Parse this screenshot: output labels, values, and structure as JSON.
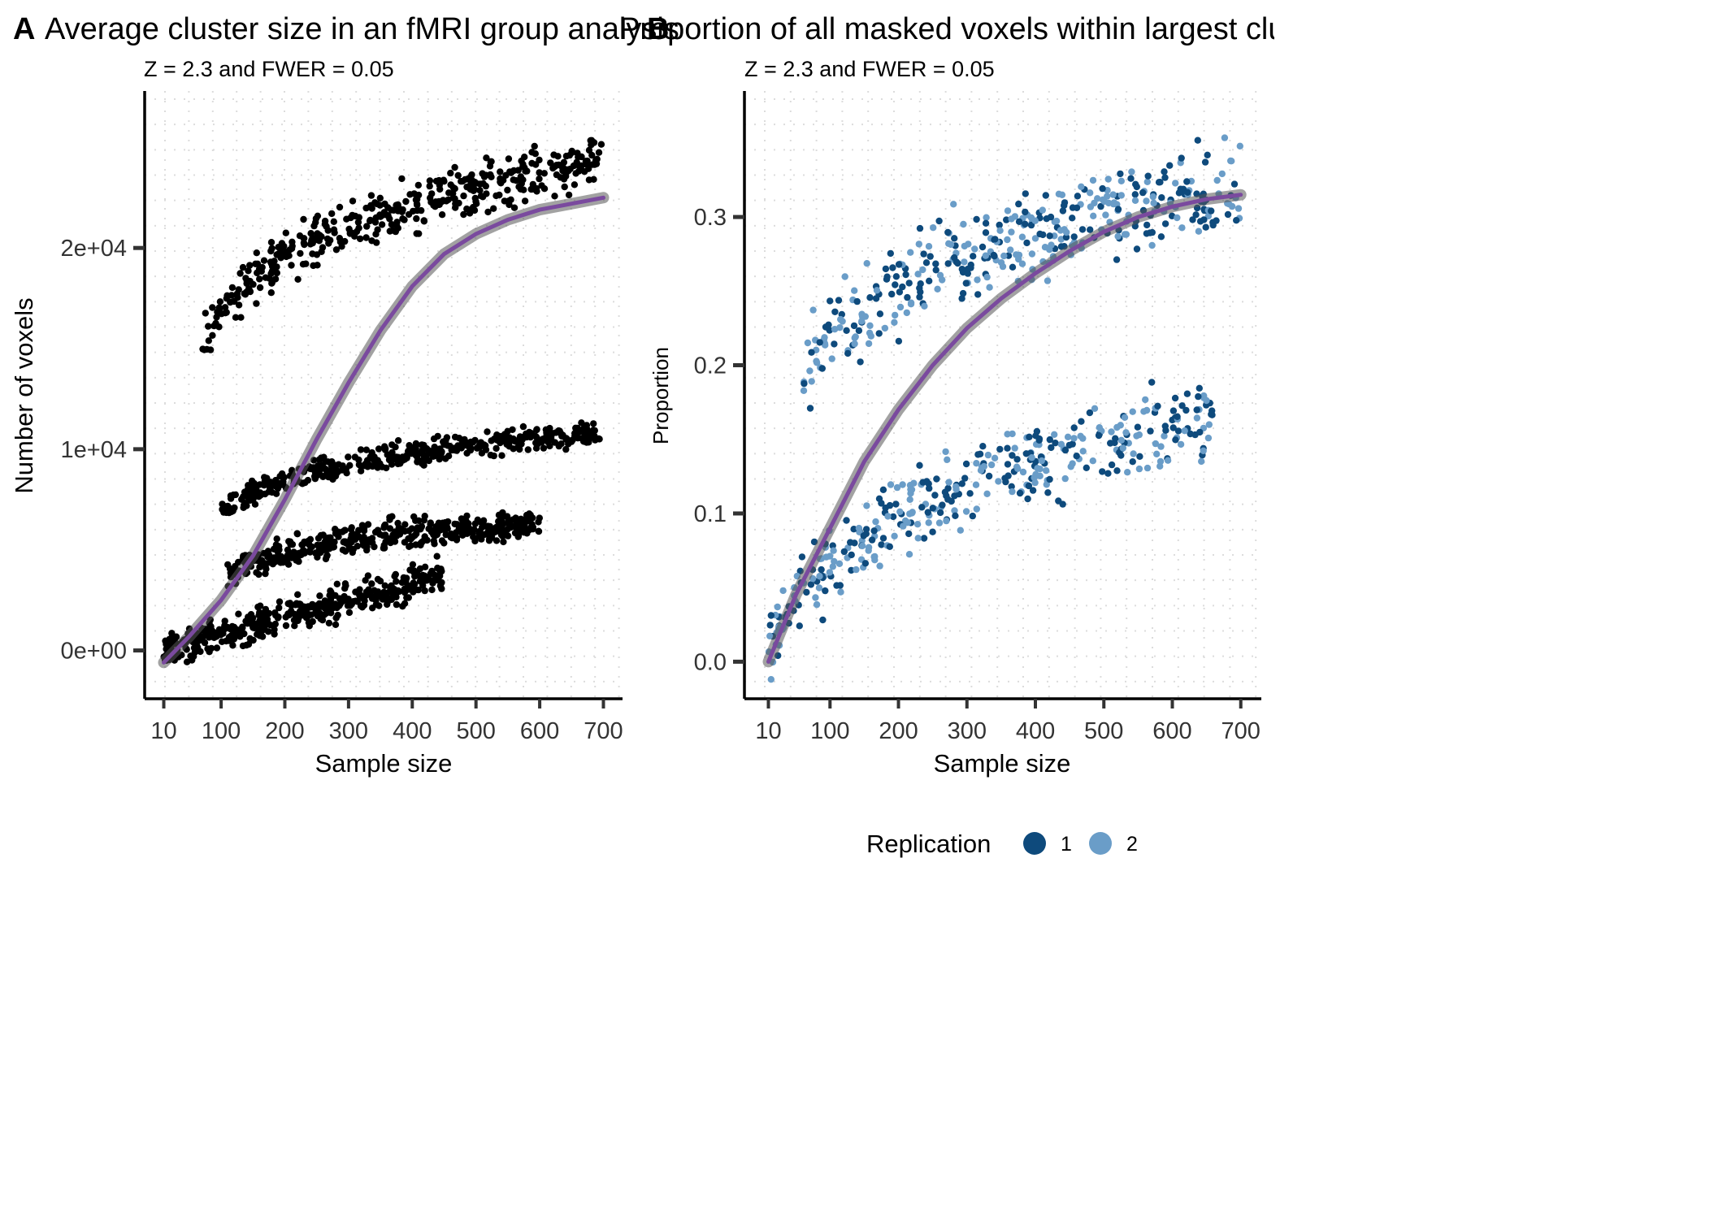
{
  "chart_data": [
    {
      "panel": "A",
      "type": "scatter",
      "title": "Average cluster size in an fMRI group analysis",
      "subtitle": "Z = 2.3 and FWER = 0.05",
      "xlabel": "Sample size",
      "ylabel": "Number of voxels",
      "x_ticks": [
        10,
        100,
        200,
        300,
        400,
        500,
        600,
        700
      ],
      "y_ticks": [
        0,
        10000,
        20000
      ],
      "y_tick_labels": [
        "0e+00",
        "1e+04",
        "2e+04"
      ],
      "xlim": [
        -20,
        730
      ],
      "ylim": [
        -2400,
        27800
      ],
      "grid": "dotted",
      "point_color": "#000000",
      "bands": [
        {
          "x": [
            70,
            700
          ],
          "y": [
            15500,
            24300
          ],
          "spread": 1800,
          "slope_shape": "log"
        },
        {
          "x": [
            100,
            700
          ],
          "y": [
            6800,
            10800
          ],
          "spread": 900,
          "slope_shape": "log"
        },
        {
          "x": [
            110,
            600
          ],
          "y": [
            3800,
            6300
          ],
          "spread": 1100,
          "slope_shape": "log"
        },
        {
          "x": [
            10,
            450
          ],
          "y": [
            0,
            3800
          ],
          "spread": 1200,
          "slope_shape": "linear"
        }
      ],
      "trend": {
        "color": "#7a4a9e",
        "x": [
          10,
          50,
          100,
          150,
          200,
          250,
          300,
          350,
          400,
          450,
          500,
          550,
          600,
          650,
          700
        ],
        "y": [
          -600,
          700,
          2500,
          4700,
          7500,
          10500,
          13300,
          15900,
          18100,
          19700,
          20700,
          21400,
          21900,
          22200,
          22500
        ]
      }
    },
    {
      "panel": "B",
      "type": "scatter",
      "title": "Proportion of all masked voxels within largest cluster",
      "subtitle": "Z = 2.3 and FWER = 0.05",
      "xlabel": "Sample size",
      "ylabel": "Proportion",
      "x_ticks": [
        10,
        100,
        200,
        300,
        400,
        500,
        600,
        700
      ],
      "y_ticks": [
        0.0,
        0.1,
        0.2,
        0.3
      ],
      "y_tick_labels": [
        "0.0",
        "0.1",
        "0.2",
        "0.3"
      ],
      "xlim": [
        -25,
        730
      ],
      "ylim": [
        -0.025,
        0.385
      ],
      "grid": "dotted",
      "legend": {
        "title": "Replication",
        "position": "bottom",
        "items": [
          {
            "label": "1",
            "color": "#0e4a7c"
          },
          {
            "label": "2",
            "color": "#6a9dc8"
          }
        ]
      },
      "bands": [
        {
          "x": [
            60,
            700
          ],
          "y": [
            0.19,
            0.32
          ],
          "spread": 0.045,
          "slope_shape": "log"
        },
        {
          "x": [
            10,
            660
          ],
          "y": [
            0.01,
            0.165
          ],
          "spread": 0.04,
          "slope_shape": "log"
        }
      ],
      "trend": {
        "color": "#7a4a9e",
        "x": [
          10,
          50,
          100,
          150,
          200,
          250,
          300,
          350,
          400,
          450,
          500,
          550,
          600,
          650,
          700
        ],
        "y": [
          0.0,
          0.045,
          0.09,
          0.135,
          0.17,
          0.2,
          0.225,
          0.245,
          0.262,
          0.277,
          0.29,
          0.3,
          0.307,
          0.312,
          0.315
        ]
      }
    }
  ]
}
